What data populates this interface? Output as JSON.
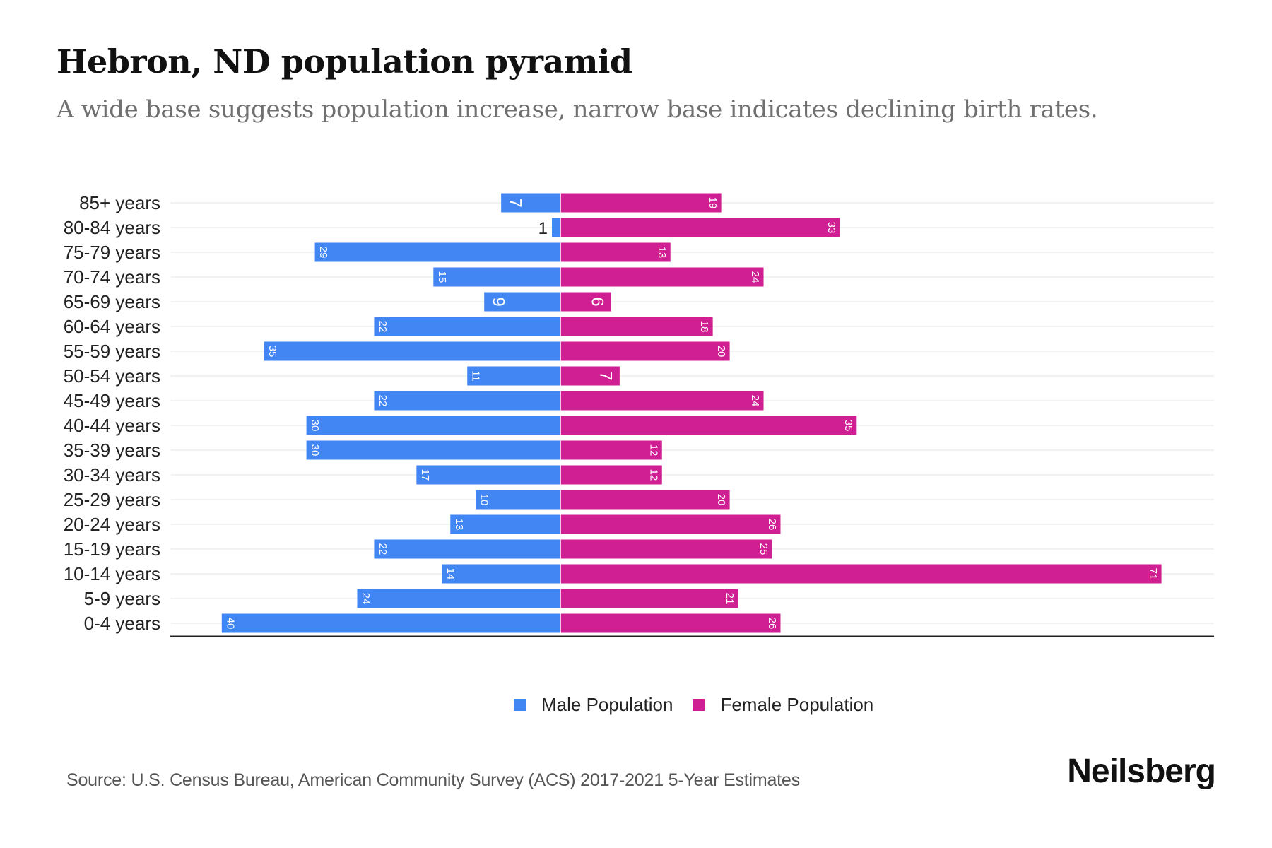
{
  "header": {
    "title": "Hebron, ND population pyramid",
    "subtitle": "A wide base suggests population increase, narrow base indicates declining birth rates."
  },
  "colors": {
    "male": "#4286F4",
    "female": "#D01F93",
    "grid": "#EEEEEE",
    "axis": "#222222"
  },
  "chart_data": {
    "type": "bar",
    "orientation": "horizontal-diverging",
    "title": "Hebron, ND population pyramid",
    "subtitle": "A wide base suggests population increase, narrow base indicates declining birth rates.",
    "xlabel": "",
    "ylabel": "",
    "categories": [
      "85+ years",
      "80-84 years",
      "75-79 years",
      "70-74 years",
      "65-69 years",
      "60-64 years",
      "55-59 years",
      "50-54 years",
      "45-49 years",
      "40-44 years",
      "35-39 years",
      "30-34 years",
      "25-29 years",
      "20-24 years",
      "15-19 years",
      "10-14 years",
      "5-9 years",
      "0-4 years"
    ],
    "series": [
      {
        "name": "Male Population",
        "side": "left",
        "values": [
          7,
          1,
          29,
          15,
          9,
          22,
          35,
          11,
          22,
          30,
          30,
          17,
          10,
          13,
          22,
          14,
          24,
          40
        ]
      },
      {
        "name": "Female Population",
        "side": "right",
        "values": [
          19,
          33,
          13,
          24,
          6,
          18,
          20,
          7,
          24,
          35,
          12,
          12,
          20,
          26,
          25,
          71,
          21,
          26
        ]
      }
    ],
    "xlim": [
      -40,
      67
    ],
    "grid": true,
    "legend": "bottom-center",
    "data_labels": true
  },
  "legend": {
    "items": [
      {
        "label": "Male Population"
      },
      {
        "label": "Female Population"
      }
    ]
  },
  "footer": {
    "source": "Source: U.S. Census Bureau, American Community Survey (ACS) 2017-2021 5-Year Estimates",
    "brand": "Neilsberg"
  }
}
